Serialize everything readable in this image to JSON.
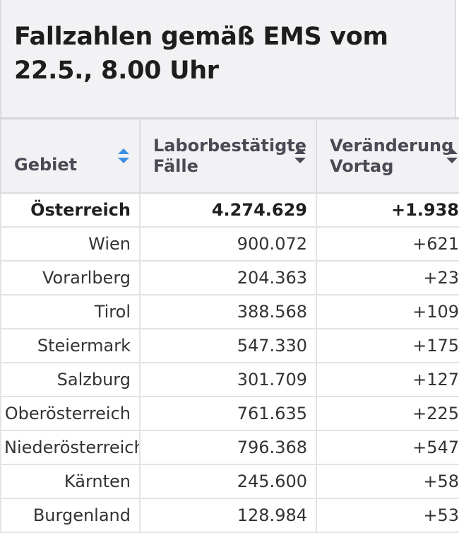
{
  "title": "Fallzahlen gemäß EMS vom 22.5., 8.00 Uhr",
  "columns": [
    {
      "label": "Gebiet",
      "sort_icon": "sort-asc-icon",
      "active_color": "#3b8fe0"
    },
    {
      "label": "Laborbestätigte Fälle",
      "sort_icon": "sort-icon"
    },
    {
      "label": "Veränderung Vortag",
      "sort_icon": "sort-icon"
    }
  ],
  "rows": [
    {
      "region": "Österreich",
      "cases": "4.274.629",
      "change": "+1.938"
    },
    {
      "region": "Wien",
      "cases": "900.072",
      "change": "+621"
    },
    {
      "region": "Vorarlberg",
      "cases": "204.363",
      "change": "+23"
    },
    {
      "region": "Tirol",
      "cases": "388.568",
      "change": "+109"
    },
    {
      "region": "Steiermark",
      "cases": "547.330",
      "change": "+175"
    },
    {
      "region": "Salzburg",
      "cases": "301.709",
      "change": "+127"
    },
    {
      "region": "Oberösterreich",
      "cases": "761.635",
      "change": "+225"
    },
    {
      "region": "Niederösterreich",
      "cases": "796.368",
      "change": "+547"
    },
    {
      "region": "Kärnten",
      "cases": "245.600",
      "change": "+58"
    },
    {
      "region": "Burgenland",
      "cases": "128.984",
      "change": "+53"
    }
  ]
}
